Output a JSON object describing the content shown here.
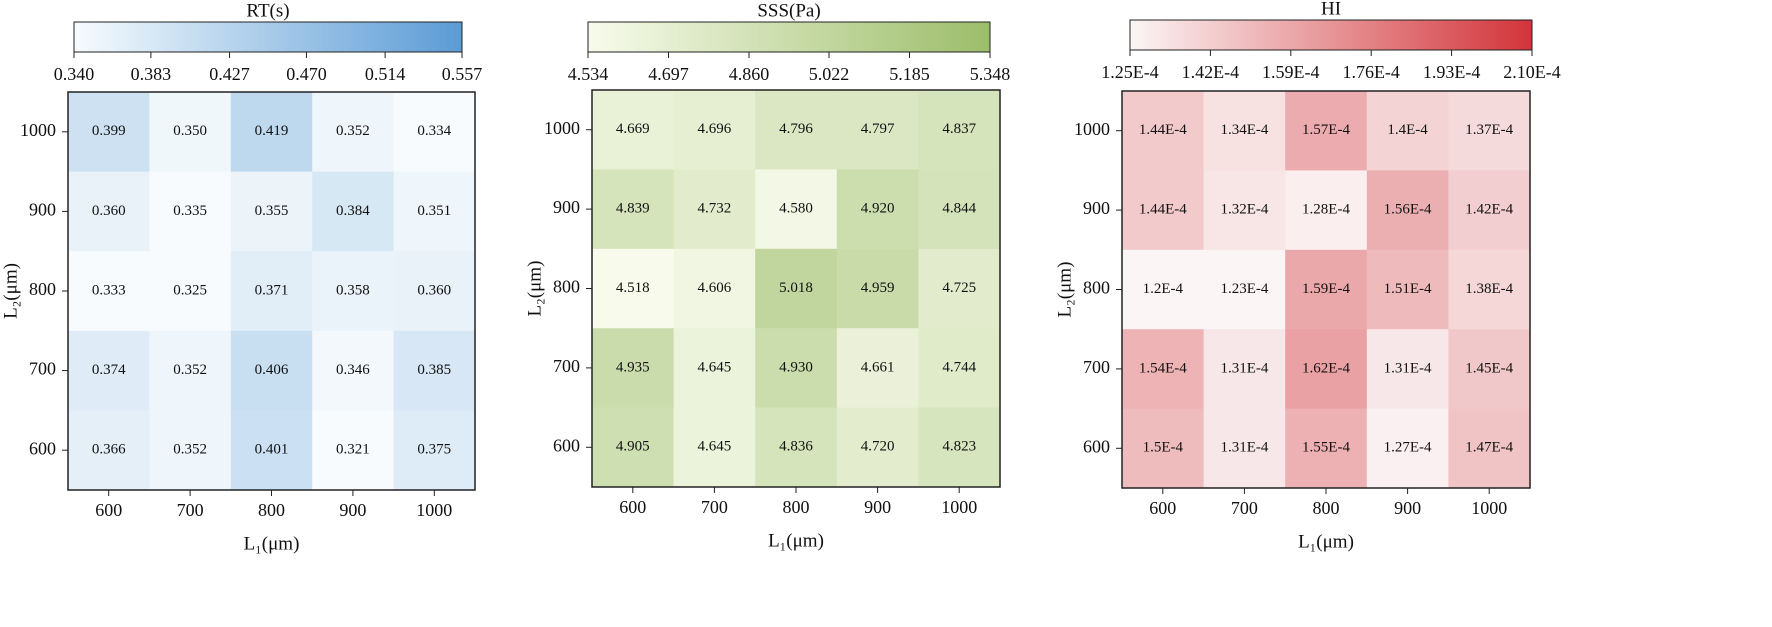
{
  "chart_data": [
    {
      "type": "heatmap",
      "title": "RT(s)",
      "x_label": "L₁(μm)",
      "y_label": "L₂(μm)",
      "x": [
        "600",
        "700",
        "800",
        "900",
        "1000"
      ],
      "y": [
        "1000",
        "900",
        "800",
        "700",
        "600"
      ],
      "values": [
        [
          0.399,
          0.35,
          0.419,
          0.352,
          0.334
        ],
        [
          0.36,
          0.335,
          0.355,
          0.384,
          0.351
        ],
        [
          0.333,
          0.325,
          0.371,
          0.358,
          0.36
        ],
        [
          0.374,
          0.352,
          0.406,
          0.346,
          0.385
        ],
        [
          0.366,
          0.352,
          0.401,
          0.321,
          0.375
        ]
      ],
      "value_labels": [
        [
          "0.399",
          "0.350",
          "0.419",
          "0.352",
          "0.334"
        ],
        [
          "0.360",
          "0.335",
          "0.355",
          "0.384",
          "0.351"
        ],
        [
          "0.333",
          "0.325",
          "0.371",
          "0.358",
          "0.360"
        ],
        [
          "0.374",
          "0.352",
          "0.406",
          "0.346",
          "0.385"
        ],
        [
          "0.366",
          "0.352",
          "0.401",
          "0.321",
          "0.375"
        ]
      ],
      "clim": [
        0.34,
        0.557
      ],
      "colormap": [
        "#f7fbfd",
        "#5b9bd5"
      ],
      "cticks": [
        {
          "value": 0.34,
          "label": "0.340"
        },
        0.383,
        0.427,
        {
          "value": 0.47,
          "label": "0.470"
        },
        0.514,
        0.557
      ]
    },
    {
      "type": "heatmap",
      "title": "SSS(Pa)",
      "x_label": "L₁(μm)",
      "y_label": "L₂(μm)",
      "x": [
        "600",
        "700",
        "800",
        "900",
        "1000"
      ],
      "y": [
        "1000",
        "900",
        "800",
        "700",
        "600"
      ],
      "values": [
        [
          4.669,
          4.696,
          4.796,
          4.797,
          4.837
        ],
        [
          4.839,
          4.732,
          4.58,
          4.92,
          4.844
        ],
        [
          4.518,
          4.606,
          5.018,
          4.959,
          4.725
        ],
        [
          4.935,
          4.645,
          4.93,
          4.661,
          4.744
        ],
        [
          4.905,
          4.645,
          4.836,
          4.72,
          4.823
        ]
      ],
      "value_labels": [
        [
          "4.669",
          "4.696",
          "4.796",
          "4.797",
          "4.837"
        ],
        [
          "4.839",
          "4.732",
          "4.580",
          "4.920",
          "4.844"
        ],
        [
          "4.518",
          "4.606",
          "5.018",
          "4.959",
          "4.725"
        ],
        [
          "4.935",
          "4.645",
          "4.930",
          "4.661",
          "4.744"
        ],
        [
          "4.905",
          "4.645",
          "4.836",
          "4.720",
          "4.823"
        ]
      ],
      "clim": [
        4.534,
        5.348
      ],
      "colormap": [
        "#f8fbec",
        "#9cbd6a"
      ],
      "cticks": [
        4.534,
        4.697,
        {
          "value": 4.86,
          "label": "4.860"
        },
        5.022,
        5.185,
        5.348
      ]
    },
    {
      "type": "heatmap",
      "title": "HI",
      "x_label": "L₁(μm)",
      "y_label": "L₂(μm)",
      "x": [
        "600",
        "700",
        "800",
        "900",
        "1000"
      ],
      "y": [
        "1000",
        "900",
        "800",
        "700",
        "600"
      ],
      "values": [
        [
          0.000144,
          0.000134,
          0.000157,
          0.00014,
          0.000137
        ],
        [
          0.000144,
          0.000132,
          0.000128,
          0.000156,
          0.000142
        ],
        [
          0.00012,
          0.000123,
          0.000159,
          0.000151,
          0.000138
        ],
        [
          0.000154,
          0.000131,
          0.000162,
          0.000131,
          0.000145
        ],
        [
          0.00015,
          0.000131,
          0.000155,
          0.000127,
          0.000147
        ]
      ],
      "value_labels": [
        [
          "1.44E-4",
          "1.34E-4",
          "1.57E-4",
          "1.4E-4",
          "1.37E-4"
        ],
        [
          "1.44E-4",
          "1.32E-4",
          "1.28E-4",
          "1.56E-4",
          "1.42E-4"
        ],
        [
          "1.2E-4",
          "1.23E-4",
          "1.59E-4",
          "1.51E-4",
          "1.38E-4"
        ],
        [
          "1.54E-4",
          "1.31E-4",
          "1.62E-4",
          "1.31E-4",
          "1.45E-4"
        ],
        [
          "1.5E-4",
          "1.31E-4",
          "1.55E-4",
          "1.27E-4",
          "1.47E-4"
        ]
      ],
      "clim": [
        0.000125,
        0.00021
      ],
      "colormap": [
        "#fbf5f5",
        "#d2343a"
      ],
      "cticks": [
        {
          "value": 0.000125,
          "label": "1.25E-4"
        },
        {
          "value": 0.000142,
          "label": "1.42E-4"
        },
        {
          "value": 0.000159,
          "label": "1.59E-4"
        },
        {
          "value": 0.000176,
          "label": "1.76E-4"
        },
        {
          "value": 0.000193,
          "label": "1.93E-4"
        },
        {
          "value": 0.00021,
          "label": "2.10E-4"
        }
      ]
    }
  ]
}
